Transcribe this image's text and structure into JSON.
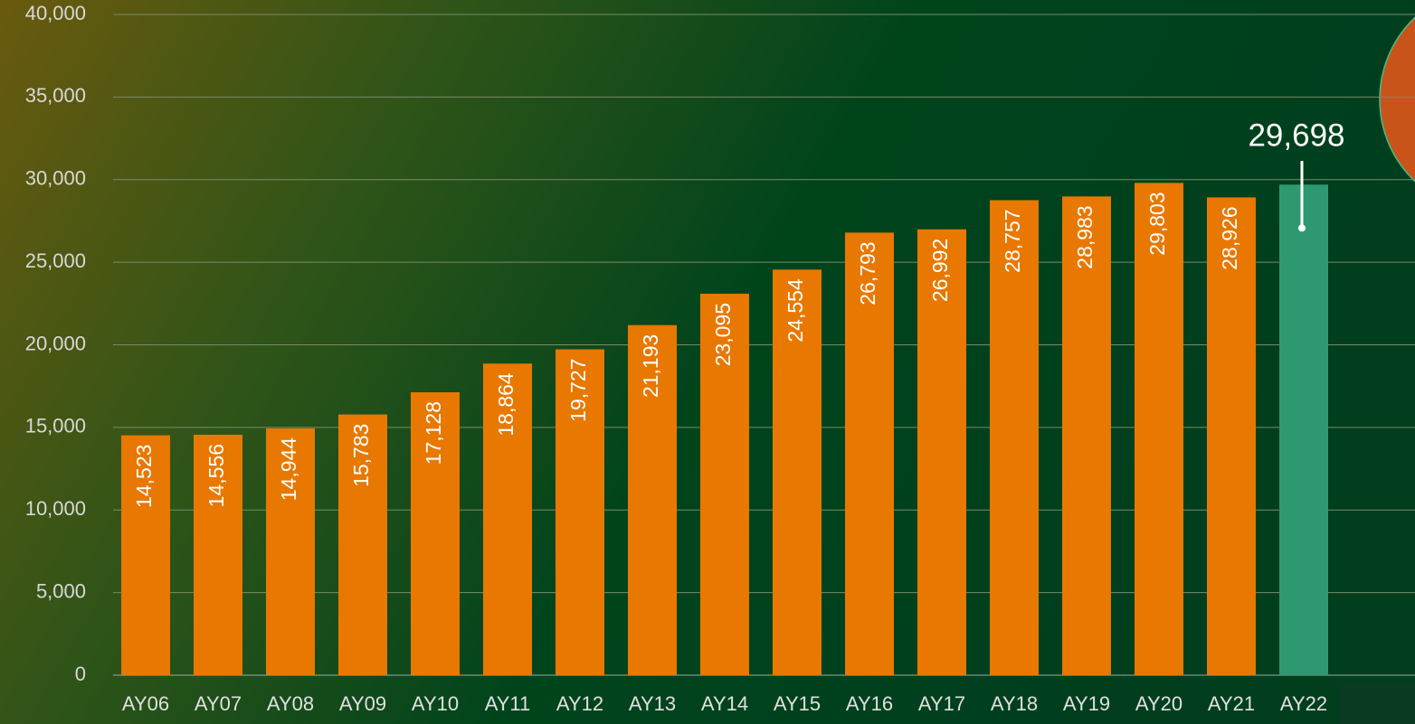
{
  "chart_data": {
    "type": "bar",
    "categories": [
      "AY06",
      "AY07",
      "AY08",
      "AY09",
      "AY10",
      "AY11",
      "AY12",
      "AY13",
      "AY14",
      "AY15",
      "AY16",
      "AY17",
      "AY18",
      "AY19",
      "AY20",
      "AY21",
      "AY22"
    ],
    "values": [
      14523,
      14556,
      14944,
      15783,
      17128,
      18864,
      19727,
      21193,
      23095,
      24554,
      26793,
      26992,
      28757,
      28983,
      29803,
      28926,
      29698
    ],
    "value_labels": [
      "14,523",
      "14,556",
      "14,944",
      "15,783",
      "17,128",
      "18,864",
      "19,727",
      "21,193",
      "23,095",
      "24,554",
      "26,793",
      "26,992",
      "28,757",
      "28,983",
      "29,803",
      "28,926",
      "29,698"
    ],
    "colors": [
      "#e87800",
      "#e87800",
      "#e87800",
      "#e87800",
      "#e87800",
      "#e87800",
      "#e87800",
      "#e87800",
      "#e87800",
      "#e87800",
      "#e87800",
      "#e87800",
      "#e87800",
      "#e87800",
      "#e87800",
      "#e87800",
      "#2e9970"
    ],
    "ylim": [
      0,
      40000
    ],
    "yticks": [
      0,
      {
        "value": 5000,
        "label": "5,000"
      },
      {
        "value": 10000,
        "label": "10,000"
      },
      {
        "value": 15000,
        "label": "15,000"
      },
      {
        "value": 20000,
        "label": "20,000"
      },
      {
        "value": 25000,
        "label": "25,000"
      },
      {
        "value": 30000,
        "label": "30,000"
      },
      {
        "value": 35000,
        "label": "35,000"
      },
      {
        "value": 40000,
        "label": "40,000"
      }
    ],
    "grid": true
  }
}
